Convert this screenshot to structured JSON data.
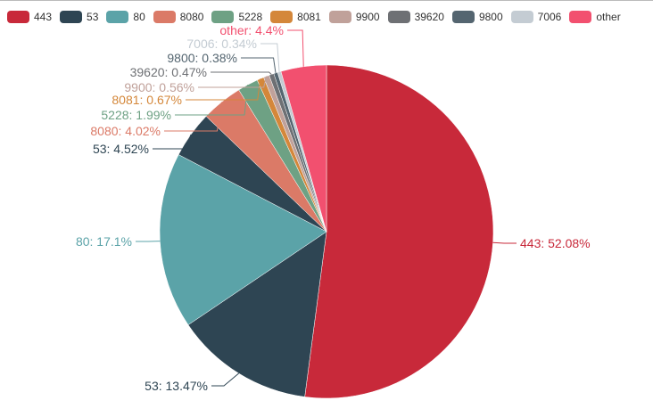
{
  "chart_data": {
    "type": "pie",
    "title": "",
    "legend_position": "top",
    "legend": [
      "443",
      "53",
      "80",
      "8080",
      "5228",
      "8081",
      "9900",
      "39620",
      "9800",
      "7006",
      "other"
    ],
    "slices": [
      {
        "name": "443",
        "value": 52.08,
        "label": "443: 52.08%",
        "color": "#c8293a"
      },
      {
        "name": "53",
        "value": 13.47,
        "label": "53: 13.47%",
        "color": "#2e4553"
      },
      {
        "name": "80",
        "value": 17.1,
        "label": "80: 17.1%",
        "color": "#5ba3a8"
      },
      {
        "name": "53",
        "value": 4.52,
        "label": "53: 4.52%",
        "color": "#2e4553"
      },
      {
        "name": "8080",
        "value": 4.02,
        "label": "8080: 4.02%",
        "color": "#db7a67"
      },
      {
        "name": "5228",
        "value": 1.99,
        "label": "5228: 1.99%",
        "color": "#6ea184"
      },
      {
        "name": "8081",
        "value": 0.67,
        "label": "8081: 0.67%",
        "color": "#d4873a"
      },
      {
        "name": "9900",
        "value": 0.56,
        "label": "9900: 0.56%",
        "color": "#c0a19a"
      },
      {
        "name": "39620",
        "value": 0.47,
        "label": "39620: 0.47%",
        "color": "#6e7074"
      },
      {
        "name": "9800",
        "value": 0.38,
        "label": "9800: 0.38%",
        "color": "#546570"
      },
      {
        "name": "7006",
        "value": 0.34,
        "label": "7006: 0.34%",
        "color": "#c4ccd3"
      },
      {
        "name": "other",
        "value": 4.4,
        "label": "other: 4.4%",
        "color": "#f2506f"
      }
    ],
    "legend_colors": [
      "#c8293a",
      "#2e4553",
      "#5ba3a8",
      "#db7a67",
      "#6ea184",
      "#d4873a",
      "#c0a19a",
      "#6e7074",
      "#546570",
      "#c4ccd3",
      "#f2506f"
    ]
  }
}
